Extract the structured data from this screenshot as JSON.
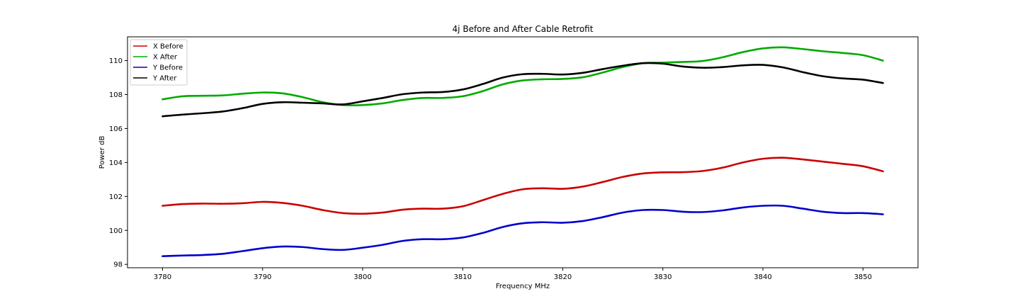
{
  "chart_data": {
    "type": "line",
    "title": "4j Before and After Cable Retrofit",
    "xlabel": "Frequency MHz",
    "ylabel": "Power dB",
    "xlim": [
      3776.5,
      3855.5
    ],
    "ylim": [
      97.8,
      111.4
    ],
    "xticks": [
      3780,
      3790,
      3800,
      3810,
      3820,
      3830,
      3840,
      3850
    ],
    "yticks": [
      98,
      100,
      102,
      104,
      106,
      108,
      110
    ],
    "grid": false,
    "legend_position": "top-left",
    "x": [
      3780,
      3782,
      3784,
      3786,
      3788,
      3790,
      3792,
      3794,
      3796,
      3798,
      3800,
      3802,
      3804,
      3806,
      3808,
      3810,
      3812,
      3814,
      3816,
      3818,
      3820,
      3822,
      3824,
      3826,
      3828,
      3830,
      3832,
      3834,
      3836,
      3838,
      3840,
      3842,
      3844,
      3846,
      3848,
      3850,
      3852
    ],
    "series": [
      {
        "name": "X Before",
        "color": "#cc0000",
        "values": [
          101.45,
          101.55,
          101.58,
          101.57,
          101.6,
          101.68,
          101.62,
          101.45,
          101.2,
          101.02,
          100.98,
          101.05,
          101.22,
          101.28,
          101.28,
          101.42,
          101.78,
          102.15,
          102.42,
          102.48,
          102.45,
          102.58,
          102.85,
          103.15,
          103.35,
          103.42,
          103.43,
          103.5,
          103.7,
          104.0,
          104.22,
          104.28,
          104.18,
          104.05,
          103.92,
          103.78,
          103.48
        ]
      },
      {
        "name": "X After",
        "color": "#00aa00",
        "values": [
          107.72,
          107.9,
          107.93,
          107.95,
          108.05,
          108.12,
          108.07,
          107.85,
          107.55,
          107.38,
          107.38,
          107.48,
          107.68,
          107.8,
          107.8,
          107.9,
          108.2,
          108.6,
          108.83,
          108.9,
          108.92,
          109.02,
          109.3,
          109.62,
          109.85,
          109.88,
          109.92,
          109.98,
          110.2,
          110.5,
          110.72,
          110.78,
          110.68,
          110.55,
          110.45,
          110.32,
          110.0
        ]
      },
      {
        "name": "Y Before",
        "color": "#0000cc",
        "values": [
          98.48,
          98.52,
          98.55,
          98.62,
          98.78,
          98.95,
          99.05,
          99.02,
          98.9,
          98.85,
          98.98,
          99.15,
          99.38,
          99.48,
          99.48,
          99.58,
          99.85,
          100.2,
          100.42,
          100.48,
          100.45,
          100.55,
          100.78,
          101.05,
          101.2,
          101.2,
          101.1,
          101.08,
          101.18,
          101.35,
          101.45,
          101.45,
          101.28,
          101.1,
          101.02,
          101.02,
          100.95
        ]
      },
      {
        "name": "Y After",
        "color": "#000000",
        "values": [
          106.72,
          106.82,
          106.9,
          107.0,
          107.2,
          107.45,
          107.55,
          107.52,
          107.48,
          107.42,
          107.6,
          107.8,
          108.02,
          108.12,
          108.15,
          108.3,
          108.62,
          109.0,
          109.2,
          109.22,
          109.18,
          109.28,
          109.5,
          109.7,
          109.85,
          109.82,
          109.65,
          109.58,
          109.62,
          109.72,
          109.75,
          109.6,
          109.32,
          109.08,
          108.95,
          108.88,
          108.68
        ]
      }
    ]
  }
}
